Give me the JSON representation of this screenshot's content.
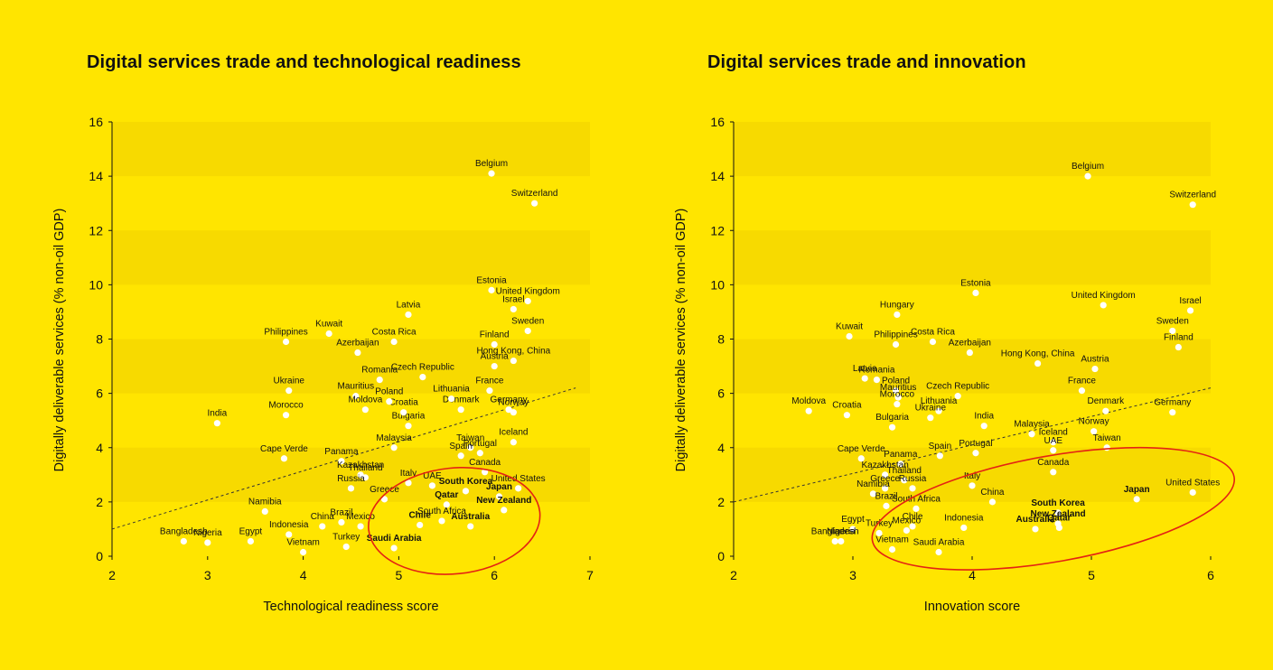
{
  "colors": {
    "background": "#FFE500",
    "band": "#F7DA00",
    "point": "#FFFFFF",
    "trend": "#333333",
    "highlight": "#E42313"
  },
  "chart_data": [
    {
      "type": "scatter",
      "title": "Digital services trade and technological readiness",
      "xlabel": "Technological readiness score",
      "ylabel": "Digitally deliverable services (% non-oil GDP)",
      "xlim": [
        2,
        7
      ],
      "ylim": [
        0,
        16
      ],
      "xticks": [
        "2",
        "3",
        "4",
        "5",
        "6",
        "7"
      ],
      "yticks": [
        "0",
        "2",
        "4",
        "6",
        "8",
        "10",
        "12",
        "14",
        "16"
      ],
      "shaded_bands": [
        [
          2,
          4
        ],
        [
          6,
          8
        ],
        [
          10,
          12
        ],
        [
          14,
          16
        ]
      ],
      "trendline": {
        "x": [
          2,
          6.85
        ],
        "y": [
          1.0,
          6.2
        ]
      },
      "highlight_ellipse": {
        "cx": 5.58,
        "cy": 1.3,
        "rx": 0.9,
        "ry": 1.95,
        "rotate_deg": -6
      },
      "points": [
        {
          "label": "Belgium",
          "x": 5.97,
          "y": 14.1,
          "bold": false
        },
        {
          "label": "Switzerland",
          "x": 6.42,
          "y": 13.0,
          "bold": false
        },
        {
          "label": "Estonia",
          "x": 5.97,
          "y": 9.8,
          "bold": false
        },
        {
          "label": "United Kingdom",
          "x": 6.35,
          "y": 9.4,
          "bold": false
        },
        {
          "label": "Israel",
          "x": 6.2,
          "y": 9.1,
          "bold": false
        },
        {
          "label": "Sweden",
          "x": 6.35,
          "y": 8.3,
          "bold": false
        },
        {
          "label": "Finland",
          "x": 6.0,
          "y": 7.8,
          "bold": false
        },
        {
          "label": "Hong Kong, China",
          "x": 6.2,
          "y": 7.2,
          "bold": false
        },
        {
          "label": "Austria",
          "x": 6.0,
          "y": 7.0,
          "bold": false
        },
        {
          "label": "France",
          "x": 5.95,
          "y": 6.1,
          "bold": false
        },
        {
          "label": "Germany",
          "x": 6.15,
          "y": 5.4,
          "bold": false
        },
        {
          "label": "Norway",
          "x": 6.2,
          "y": 5.3,
          "bold": false
        },
        {
          "label": "Denmark",
          "x": 5.65,
          "y": 5.4,
          "bold": false
        },
        {
          "label": "Iceland",
          "x": 6.2,
          "y": 4.2,
          "bold": false
        },
        {
          "label": "Taiwan",
          "x": 5.75,
          "y": 4.0,
          "bold": false
        },
        {
          "label": "Portugal",
          "x": 5.85,
          "y": 3.8,
          "bold": false
        },
        {
          "label": "Spain",
          "x": 5.65,
          "y": 3.7,
          "bold": false
        },
        {
          "label": "Canada",
          "x": 5.9,
          "y": 3.1,
          "bold": false
        },
        {
          "label": "United States",
          "x": 6.25,
          "y": 2.5,
          "bold": false
        },
        {
          "label": "South Korea",
          "x": 5.7,
          "y": 2.4,
          "bold": true
        },
        {
          "label": "Japan",
          "x": 6.05,
          "y": 2.2,
          "bold": true
        },
        {
          "label": "New Zealand",
          "x": 6.1,
          "y": 1.7,
          "bold": true
        },
        {
          "label": "Qatar",
          "x": 5.5,
          "y": 1.9,
          "bold": true
        },
        {
          "label": "Australia",
          "x": 5.75,
          "y": 1.1,
          "bold": true
        },
        {
          "label": "Chile",
          "x": 5.22,
          "y": 1.15,
          "bold": true
        },
        {
          "label": "Saudi Arabia",
          "x": 4.95,
          "y": 0.3,
          "bold": true
        },
        {
          "label": "South Africa",
          "x": 5.45,
          "y": 1.3,
          "bold": false
        },
        {
          "label": "Greece",
          "x": 4.85,
          "y": 2.1,
          "bold": false
        },
        {
          "label": "Italy",
          "x": 5.1,
          "y": 2.7,
          "bold": false
        },
        {
          "label": "UAE",
          "x": 5.35,
          "y": 2.6,
          "bold": false
        },
        {
          "label": "Malaysia",
          "x": 4.95,
          "y": 4.0,
          "bold": false
        },
        {
          "label": "Bulgaria",
          "x": 5.1,
          "y": 4.8,
          "bold": false
        },
        {
          "label": "Lithuania",
          "x": 5.55,
          "y": 5.8,
          "bold": false
        },
        {
          "label": "Czech Republic",
          "x": 5.25,
          "y": 6.6,
          "bold": false
        },
        {
          "label": "Latvia",
          "x": 5.1,
          "y": 8.9,
          "bold": false
        },
        {
          "label": "Croatia",
          "x": 5.05,
          "y": 5.3,
          "bold": false
        },
        {
          "label": "Poland",
          "x": 4.9,
          "y": 5.7,
          "bold": false
        },
        {
          "label": "Romania",
          "x": 4.8,
          "y": 6.5,
          "bold": false
        },
        {
          "label": "Costa Rica",
          "x": 4.95,
          "y": 7.9,
          "bold": false
        },
        {
          "label": "Azerbaijan",
          "x": 4.57,
          "y": 7.5,
          "bold": false
        },
        {
          "label": "Kuwait",
          "x": 4.27,
          "y": 8.2,
          "bold": false
        },
        {
          "label": "Mauritius",
          "x": 4.55,
          "y": 5.9,
          "bold": false
        },
        {
          "label": "Moldova",
          "x": 4.65,
          "y": 5.4,
          "bold": false
        },
        {
          "label": "Philippines",
          "x": 3.82,
          "y": 7.9,
          "bold": false
        },
        {
          "label": "Ukraine",
          "x": 3.85,
          "y": 6.1,
          "bold": false
        },
        {
          "label": "Morocco",
          "x": 3.82,
          "y": 5.2,
          "bold": false
        },
        {
          "label": "India",
          "x": 3.1,
          "y": 4.9,
          "bold": false
        },
        {
          "label": "Cape Verde",
          "x": 3.8,
          "y": 3.6,
          "bold": false
        },
        {
          "label": "Panama",
          "x": 4.4,
          "y": 3.5,
          "bold": false
        },
        {
          "label": "Kazakhstan",
          "x": 4.6,
          "y": 3.0,
          "bold": false
        },
        {
          "label": "Thailand",
          "x": 4.65,
          "y": 2.9,
          "bold": false
        },
        {
          "label": "Russia",
          "x": 4.5,
          "y": 2.5,
          "bold": false
        },
        {
          "label": "Namibia",
          "x": 3.6,
          "y": 1.65,
          "bold": false
        },
        {
          "label": "China",
          "x": 4.2,
          "y": 1.1,
          "bold": false
        },
        {
          "label": "Brazil",
          "x": 4.4,
          "y": 1.25,
          "bold": false
        },
        {
          "label": "Indonesia",
          "x": 3.85,
          "y": 0.8,
          "bold": false
        },
        {
          "label": "Mexico",
          "x": 4.6,
          "y": 1.1,
          "bold": false
        },
        {
          "label": "Vietnam",
          "x": 4.0,
          "y": 0.15,
          "bold": false
        },
        {
          "label": "Turkey",
          "x": 4.45,
          "y": 0.35,
          "bold": false
        },
        {
          "label": "Egypt",
          "x": 3.45,
          "y": 0.55,
          "bold": false
        },
        {
          "label": "Bangladesh",
          "x": 2.75,
          "y": 0.55,
          "bold": false
        },
        {
          "label": "Nigeria",
          "x": 3.0,
          "y": 0.5,
          "bold": false
        }
      ]
    },
    {
      "type": "scatter",
      "title": "Digital services trade and innovation",
      "xlabel": "Innovation score",
      "ylabel": "Digitally deliverable services (% non-oil GDP)",
      "xlim": [
        2,
        6
      ],
      "ylim": [
        0,
        16
      ],
      "xticks": [
        "2",
        "3",
        "4",
        "5",
        "6"
      ],
      "yticks": [
        "0",
        "2",
        "4",
        "6",
        "8",
        "10",
        "12",
        "14",
        "16"
      ],
      "shaded_bands": [
        [
          2,
          4
        ],
        [
          6,
          8
        ],
        [
          10,
          12
        ],
        [
          14,
          16
        ]
      ],
      "trendline": {
        "x": [
          2,
          6.0
        ],
        "y": [
          2.0,
          6.2
        ]
      },
      "highlight_ellipse": {
        "cx": 4.68,
        "cy": 1.75,
        "rx": 1.54,
        "ry": 1.95,
        "rotate_deg": -10
      },
      "points": [
        {
          "label": "Belgium",
          "x": 4.97,
          "y": 14.0,
          "bold": false
        },
        {
          "label": "Switzerland",
          "x": 5.85,
          "y": 12.95,
          "bold": false
        },
        {
          "label": "Estonia",
          "x": 4.03,
          "y": 9.7,
          "bold": false
        },
        {
          "label": "United Kingdom",
          "x": 5.1,
          "y": 9.25,
          "bold": false
        },
        {
          "label": "Israel",
          "x": 5.83,
          "y": 9.05,
          "bold": false
        },
        {
          "label": "Sweden",
          "x": 5.68,
          "y": 8.3,
          "bold": false
        },
        {
          "label": "Finland",
          "x": 5.73,
          "y": 7.7,
          "bold": false
        },
        {
          "label": "Hungary",
          "x": 3.37,
          "y": 8.9,
          "bold": false
        },
        {
          "label": "Kuwait",
          "x": 2.97,
          "y": 8.1,
          "bold": false
        },
        {
          "label": "Philippines",
          "x": 3.36,
          "y": 7.8,
          "bold": false
        },
        {
          "label": "Costa Rica",
          "x": 3.67,
          "y": 7.9,
          "bold": false
        },
        {
          "label": "Azerbaijan",
          "x": 3.98,
          "y": 7.5,
          "bold": false
        },
        {
          "label": "Hong Kong, China",
          "x": 4.55,
          "y": 7.1,
          "bold": false
        },
        {
          "label": "Austria",
          "x": 5.03,
          "y": 6.9,
          "bold": false
        },
        {
          "label": "France",
          "x": 4.92,
          "y": 6.1,
          "bold": false
        },
        {
          "label": "Denmark",
          "x": 5.12,
          "y": 5.35,
          "bold": false
        },
        {
          "label": "Germany",
          "x": 5.68,
          "y": 5.3,
          "bold": false
        },
        {
          "label": "Norway",
          "x": 5.02,
          "y": 4.6,
          "bold": false
        },
        {
          "label": "Taiwan",
          "x": 5.13,
          "y": 4.0,
          "bold": false
        },
        {
          "label": "Iceland",
          "x": 4.68,
          "y": 4.2,
          "bold": false
        },
        {
          "label": "Latvia",
          "x": 3.1,
          "y": 6.55,
          "bold": false
        },
        {
          "label": "Poland",
          "x": 3.36,
          "y": 6.1,
          "bold": false
        },
        {
          "label": "Romania",
          "x": 3.2,
          "y": 6.5,
          "bold": false
        },
        {
          "label": "Mauritius",
          "x": 3.38,
          "y": 5.85,
          "bold": false
        },
        {
          "label": "Czech Republic",
          "x": 3.88,
          "y": 5.9,
          "bold": false
        },
        {
          "label": "Lithuania",
          "x": 3.72,
          "y": 5.35,
          "bold": false
        },
        {
          "label": "Moldova",
          "x": 2.63,
          "y": 5.35,
          "bold": false
        },
        {
          "label": "Morocco",
          "x": 3.37,
          "y": 5.6,
          "bold": false
        },
        {
          "label": "Croatia",
          "x": 2.95,
          "y": 5.2,
          "bold": false
        },
        {
          "label": "Bulgaria",
          "x": 3.33,
          "y": 4.75,
          "bold": false
        },
        {
          "label": "Ukraine",
          "x": 3.65,
          "y": 5.1,
          "bold": false
        },
        {
          "label": "India",
          "x": 4.1,
          "y": 4.8,
          "bold": false
        },
        {
          "label": "Malaysia",
          "x": 4.5,
          "y": 4.5,
          "bold": false
        },
        {
          "label": "Portugal",
          "x": 4.03,
          "y": 3.8,
          "bold": false
        },
        {
          "label": "Spain",
          "x": 3.73,
          "y": 3.7,
          "bold": false
        },
        {
          "label": "UAE",
          "x": 4.68,
          "y": 3.9,
          "bold": false
        },
        {
          "label": "Canada",
          "x": 4.68,
          "y": 3.1,
          "bold": false
        },
        {
          "label": "Cape Verde",
          "x": 3.07,
          "y": 3.6,
          "bold": false
        },
        {
          "label": "Panama",
          "x": 3.4,
          "y": 3.4,
          "bold": false
        },
        {
          "label": "Kazakhstan",
          "x": 3.27,
          "y": 3.0,
          "bold": false
        },
        {
          "label": "Thailand",
          "x": 3.43,
          "y": 2.8,
          "bold": false
        },
        {
          "label": "Italy",
          "x": 4.0,
          "y": 2.6,
          "bold": false
        },
        {
          "label": "Greece",
          "x": 3.27,
          "y": 2.5,
          "bold": false
        },
        {
          "label": "Russia",
          "x": 3.5,
          "y": 2.5,
          "bold": false
        },
        {
          "label": "Namibia",
          "x": 3.17,
          "y": 2.3,
          "bold": false
        },
        {
          "label": "South Korea",
          "x": 4.72,
          "y": 1.6,
          "bold": true
        },
        {
          "label": "New Zealand",
          "x": 4.72,
          "y": 1.2,
          "bold": true
        },
        {
          "label": "Japan",
          "x": 5.38,
          "y": 2.1,
          "bold": true
        },
        {
          "label": "United States",
          "x": 5.85,
          "y": 2.35,
          "bold": false
        },
        {
          "label": "China",
          "x": 4.17,
          "y": 2.0,
          "bold": false
        },
        {
          "label": "South Africa",
          "x": 3.53,
          "y": 1.75,
          "bold": false
        },
        {
          "label": "Brazil",
          "x": 3.28,
          "y": 1.85,
          "bold": false
        },
        {
          "label": "Chile",
          "x": 3.5,
          "y": 1.1,
          "bold": false
        },
        {
          "label": "Indonesia",
          "x": 3.93,
          "y": 1.05,
          "bold": false
        },
        {
          "label": "Egypt",
          "x": 3.0,
          "y": 1.0,
          "bold": false
        },
        {
          "label": "Turkey",
          "x": 3.22,
          "y": 0.85,
          "bold": false
        },
        {
          "label": "Mexico",
          "x": 3.45,
          "y": 0.95,
          "bold": false
        },
        {
          "label": "Bangladesh",
          "x": 2.85,
          "y": 0.55,
          "bold": false
        },
        {
          "label": "Nigeria",
          "x": 2.9,
          "y": 0.55,
          "bold": false
        },
        {
          "label": "Vietnam",
          "x": 3.33,
          "y": 0.25,
          "bold": false
        },
        {
          "label": "Saudi Arabia",
          "x": 3.72,
          "y": 0.15,
          "bold": false
        },
        {
          "label": "Australia",
          "x": 4.53,
          "y": 1.0,
          "bold": true
        },
        {
          "label": "Qatar",
          "x": 4.73,
          "y": 1.05,
          "bold": true
        }
      ]
    }
  ]
}
